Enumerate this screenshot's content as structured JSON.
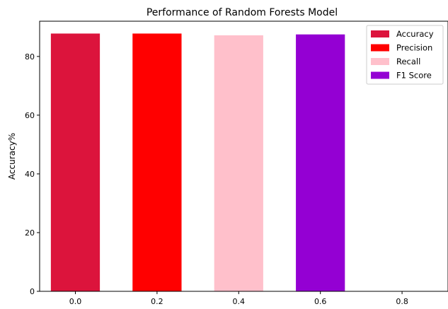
{
  "chart_data": {
    "type": "bar",
    "title": "Performance of Random Forests Model",
    "xlabel": "",
    "ylabel": "Accuracy%",
    "xlim": [
      -0.0875,
      0.9125
    ],
    "ylim": [
      0,
      92
    ],
    "xticks": [
      0.0,
      0.2,
      0.4,
      0.6,
      0.8
    ],
    "xtick_labels": [
      "0.0",
      "0.2",
      "0.4",
      "0.6",
      "0.8"
    ],
    "yticks": [
      0,
      20,
      40,
      60,
      80
    ],
    "ytick_labels": [
      "0",
      "20",
      "40",
      "60",
      "80"
    ],
    "bar_width": 0.12,
    "grid": false,
    "legend_position": "top-right",
    "series": [
      {
        "name": "Accuracy",
        "x": 0.0,
        "value": 87.8,
        "color": "#dc143c"
      },
      {
        "name": "Precision",
        "x": 0.2,
        "value": 87.8,
        "color": "#ff0000"
      },
      {
        "name": "Recall",
        "x": 0.4,
        "value": 87.2,
        "color": "#ffc0cb"
      },
      {
        "name": "F1 Score",
        "x": 0.6,
        "value": 87.5,
        "color": "#9400d3"
      }
    ]
  }
}
